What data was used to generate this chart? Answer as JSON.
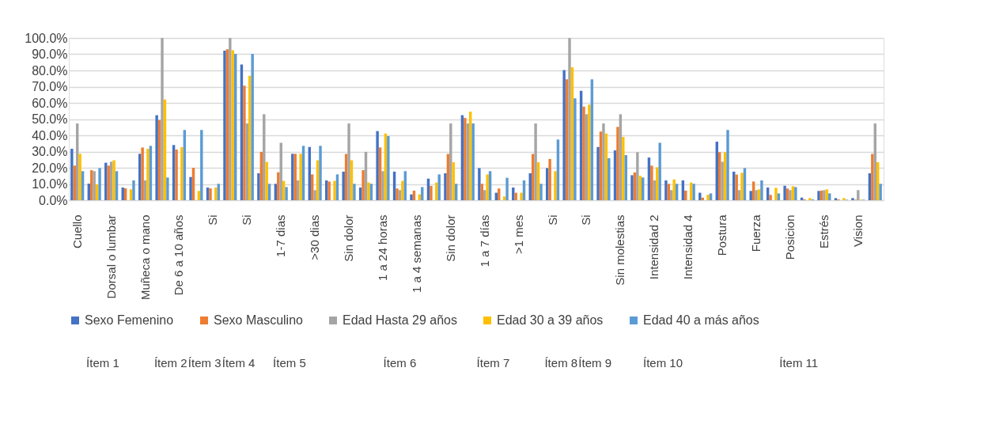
{
  "chart_data": {
    "type": "bar",
    "categories": [
      "Cuello",
      null,
      "Dorsal o lumbar",
      null,
      "Muñeca o mano",
      null,
      "De 6 a 10 años",
      null,
      "Si",
      null,
      "Si",
      null,
      "1-7 dias",
      null,
      ">30 dias",
      null,
      "Sin dolor",
      null,
      "1 a 24 horas",
      null,
      "1 a 4 semanas",
      null,
      "Sin dolor",
      null,
      "1 a 7 días",
      null,
      ">1 mes",
      null,
      "Si",
      null,
      "Si",
      null,
      "Sin molestias",
      null,
      "Intensidad 2",
      null,
      "Intensidad 4",
      null,
      "Postura",
      null,
      "Fuerza",
      null,
      "Posicion",
      null,
      "Estrés",
      null,
      "Vision",
      null
    ],
    "series": [
      {
        "name": "Sexo Femenino",
        "color": "#4472c4",
        "values": [
          31.7,
          10.2,
          23.1,
          7.8,
          28.6,
          52.4,
          34,
          14.3,
          7.8,
          92.2,
          83.7,
          16.6,
          10.1,
          28.6,
          32.8,
          12.2,
          17.6,
          7.8,
          42.6,
          17.6,
          3.6,
          13.3,
          16.6,
          52.4,
          19.8,
          4.6,
          7.8,
          16.6,
          19.8,
          80.2,
          67.5,
          32.8,
          30.7,
          15.4,
          26.3,
          12.2,
          12.2,
          4.6,
          36.1,
          17.6,
          5.7,
          7.8,
          8.9,
          1.6,
          5.7,
          1.3,
          1.3,
          16.6
        ]
      },
      {
        "name": "Sexo Masculino",
        "color": "#ed7d31",
        "values": [
          21.3,
          18.5,
          21.3,
          7.3,
          32.5,
          49.4,
          31.2,
          20,
          7.3,
          93,
          70.6,
          29.8,
          17.2,
          28.6,
          15.9,
          11.5,
          28.5,
          18.5,
          32.5,
          7.2,
          5.9,
          8.8,
          28.5,
          50.7,
          10.1,
          7.2,
          4.6,
          28.5,
          25.4,
          74.5,
          57.7,
          42.3,
          45.2,
          17.1,
          21.3,
          10.1,
          5.9,
          1.6,
          29.6,
          15.8,
          11.5,
          3.3,
          7.2,
          0.5,
          5.9,
          0.5,
          0.3,
          28.5
        ]
      },
      {
        "name": "Edad Hasta 29 años",
        "color": "#a5a5a5",
        "values": [
          47.3,
          17.9,
          23.7,
          0,
          12.2,
          100,
          0,
          0,
          0,
          100,
          47.3,
          53,
          35.4,
          12.2,
          6.2,
          0,
          47.3,
          29.8,
          17.9,
          6.2,
          0,
          0,
          47.3,
          47.3,
          6.2,
          0,
          0,
          47.3,
          0,
          100,
          53,
          47.3,
          53,
          29.6,
          12.2,
          6.2,
          0,
          0,
          23.7,
          6.2,
          6.2,
          0,
          6.2,
          0,
          6.2,
          0,
          6.2,
          47.3
        ]
      },
      {
        "name": "Edad 30 a 39 años",
        "color": "#ffc000",
        "values": [
          28.6,
          9.8,
          24.6,
          6.7,
          31.7,
          62.1,
          32.7,
          5.7,
          7.8,
          92.5,
          76.7,
          23.6,
          11.9,
          28.6,
          24.6,
          11.9,
          24.6,
          10.9,
          41.1,
          11.9,
          3.6,
          10.9,
          23.4,
          54.6,
          15.9,
          2.3,
          4.6,
          23.4,
          17.9,
          82,
          58.9,
          41.1,
          39,
          15,
          20.3,
          12.8,
          10.9,
          3.4,
          29.6,
          16.9,
          6.7,
          7.6,
          8.6,
          1.3,
          6.7,
          1.3,
          0.3,
          23.4
        ]
      },
      {
        "name": "Edad 40 a más años",
        "color": "#5b9bd5",
        "values": [
          17.9,
          19.8,
          17.9,
          12.2,
          33.5,
          14,
          43.3,
          43.3,
          10.1,
          90.2,
          90.2,
          10.1,
          8.1,
          33.5,
          33.5,
          15.9,
          10.1,
          10.1,
          39.5,
          17.9,
          8.1,
          15.9,
          10.1,
          47.3,
          17.9,
          13.8,
          12.2,
          10.1,
          37.4,
          62.8,
          74.5,
          25.9,
          27.8,
          14,
          35.4,
          10.1,
          10.1,
          4.2,
          43.3,
          19.8,
          12.2,
          4.2,
          8.1,
          0.5,
          4.2,
          0.3,
          0.3,
          10.1
        ]
      }
    ],
    "ylim": [
      0,
      100
    ],
    "yticks": [
      {
        "value": 0,
        "label": "0.0%"
      },
      {
        "value": 10,
        "label": "10.0%"
      },
      {
        "value": 20,
        "label": "20.0%"
      },
      {
        "value": 30,
        "label": "30.0%"
      },
      {
        "value": 40,
        "label": "40.0%"
      },
      {
        "value": 50,
        "label": "50.0%"
      },
      {
        "value": 60,
        "label": "60.0%"
      },
      {
        "value": 70,
        "label": "70.0%"
      },
      {
        "value": 80,
        "label": "80.0%"
      },
      {
        "value": 90,
        "label": "90.0%"
      },
      {
        "value": 100,
        "label": "100.0%"
      }
    ],
    "grid": "y",
    "legend": "bottom",
    "annotations": [
      "Ítem 1",
      "Ítem 2",
      "Ítem 3",
      "Ítem 4",
      "Ítem 5",
      "Ítem 6",
      "Ítem 7",
      "Ítem 8",
      "Ítem 9",
      "Ítem 10",
      "Ítem 11"
    ]
  }
}
